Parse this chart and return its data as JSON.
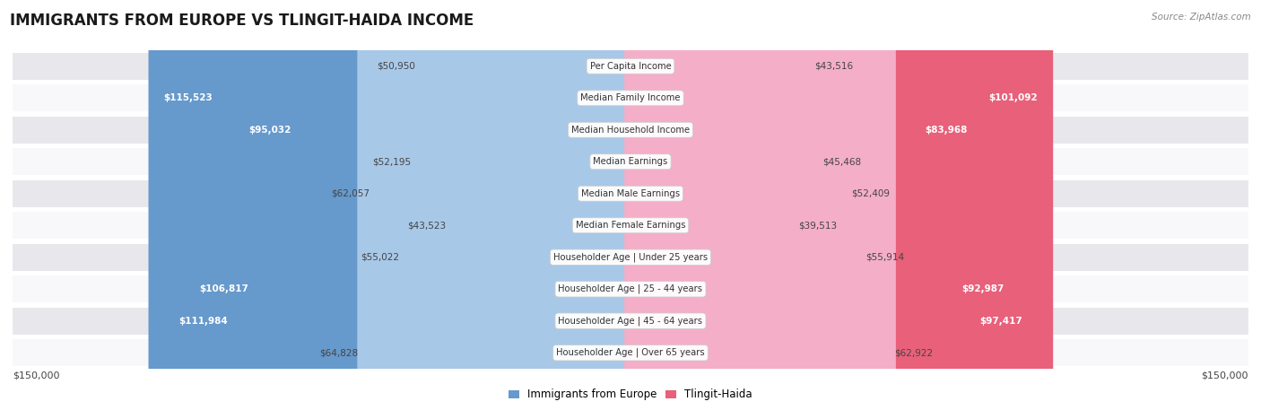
{
  "title": "IMMIGRANTS FROM EUROPE VS TLINGIT-HAIDA INCOME",
  "source": "Source: ZipAtlas.com",
  "categories": [
    "Per Capita Income",
    "Median Family Income",
    "Median Household Income",
    "Median Earnings",
    "Median Male Earnings",
    "Median Female Earnings",
    "Householder Age | Under 25 years",
    "Householder Age | 25 - 44 years",
    "Householder Age | 45 - 64 years",
    "Householder Age | Over 65 years"
  ],
  "europe_values": [
    50950,
    115523,
    95032,
    52195,
    62057,
    43523,
    55022,
    106817,
    111984,
    64828
  ],
  "tlingit_values": [
    43516,
    101092,
    83968,
    45468,
    52409,
    39513,
    55914,
    92987,
    97417,
    62922
  ],
  "europe_labels": [
    "$50,950",
    "$115,523",
    "$95,032",
    "$52,195",
    "$62,057",
    "$43,523",
    "$55,022",
    "$106,817",
    "$111,984",
    "$64,828"
  ],
  "tlingit_labels": [
    "$43,516",
    "$101,092",
    "$83,968",
    "$45,468",
    "$52,409",
    "$39,513",
    "$55,914",
    "$92,987",
    "$97,417",
    "$62,922"
  ],
  "europe_color_light": "#a8c8e8",
  "europe_color_dark": "#6699cc",
  "tlingit_color_light": "#f4aec8",
  "tlingit_color_dark": "#e8607a",
  "max_value": 150000,
  "bg_color": "#ffffff",
  "row_bg_light": "#e8e8ec",
  "row_bg_white": "#f8f8fa",
  "legend_europe": "Immigrants from Europe",
  "legend_tlingit": "Tlingit-Haida",
  "xlabel_left": "$150,000",
  "xlabel_right": "$150,000",
  "label_inside_threshold": 65000
}
